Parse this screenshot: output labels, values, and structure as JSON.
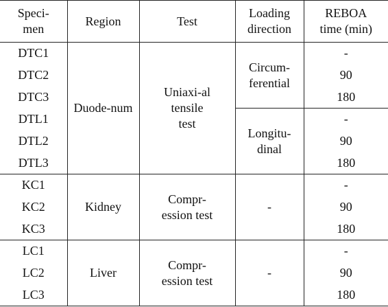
{
  "header": [
    [
      "Speci-",
      "men"
    ],
    [
      "Region"
    ],
    [
      "Test"
    ],
    [
      "Loading",
      "direction"
    ],
    [
      "REBOA",
      "time (min)"
    ]
  ],
  "groups": [
    {
      "specimens": [
        "DTC1",
        "DTC2",
        "DTC3",
        "DTL1",
        "DTL2",
        "DTL3"
      ],
      "region": "Duode-num",
      "test": [
        "Uniaxi-al",
        "tensile",
        "test"
      ],
      "directions": [
        {
          "label": [
            "Circum-",
            "ferential"
          ],
          "times": [
            "-",
            "90",
            "180"
          ]
        },
        {
          "label": [
            "Longitu-",
            "dinal"
          ],
          "times": [
            "-",
            "90",
            "180"
          ]
        }
      ]
    },
    {
      "specimens": [
        "KC1",
        "KC2",
        "KC3"
      ],
      "region": "Kidney",
      "test": [
        "Compr-",
        "ession test"
      ],
      "directions": [
        {
          "label": [
            "-"
          ],
          "times": [
            "-",
            "90",
            "180"
          ]
        }
      ]
    },
    {
      "specimens": [
        "LC1",
        "LC2",
        "LC3"
      ],
      "region": "Liver",
      "test": [
        "Compr-",
        "ession test"
      ],
      "directions": [
        {
          "label": [
            "-"
          ],
          "times": [
            "-",
            "90",
            "180"
          ]
        }
      ]
    }
  ]
}
